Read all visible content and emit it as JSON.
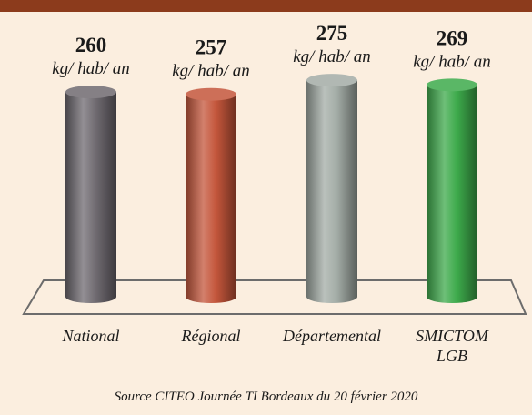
{
  "chart_data": {
    "type": "bar",
    "categories": [
      "National",
      "Régional",
      "Départemental",
      "SMICTOM LGB"
    ],
    "values": [
      260,
      257,
      275,
      269
    ],
    "unit": "kg/ hab/ an",
    "colors": [
      "#6f6a70",
      "#c4563b",
      "#a3aca6",
      "#3daa4b"
    ],
    "source": "Source CITEO Journée TI Bordeaux du 20 février 2020"
  }
}
